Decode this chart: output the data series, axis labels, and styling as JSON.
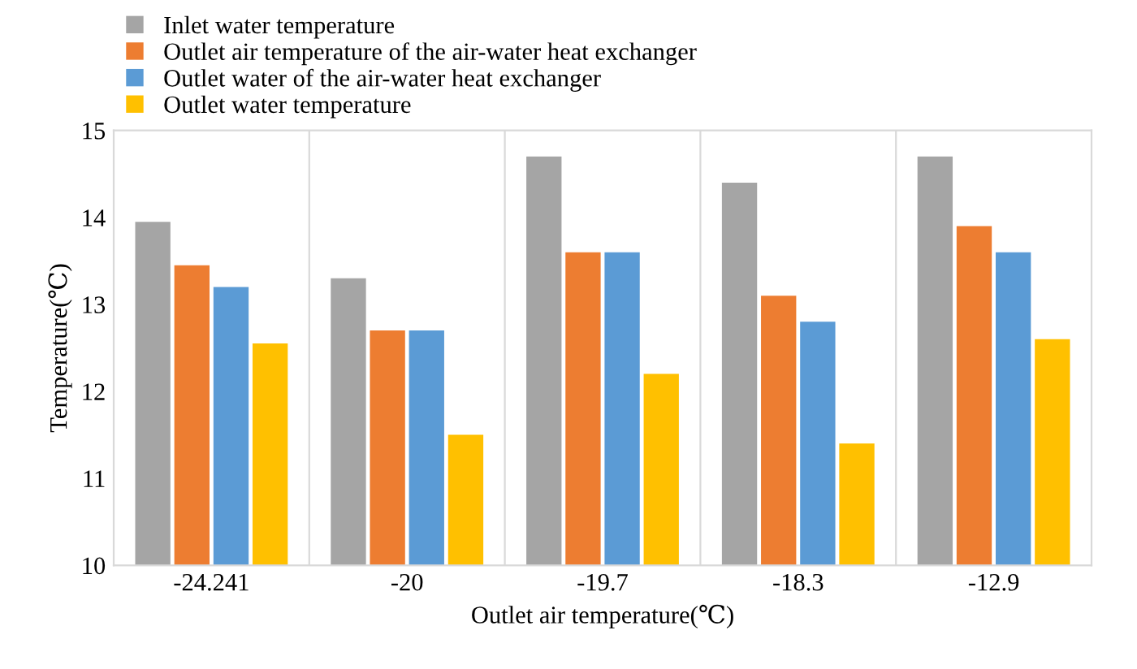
{
  "chart_data": {
    "type": "bar",
    "xlabel": "Outlet air temperature(℃)",
    "ylabel": "Temperature(℃)",
    "categories": [
      "-24.241",
      "-20",
      "-19.7",
      "-18.3",
      "-12.9"
    ],
    "series": [
      {
        "name": "Inlet water temperature",
        "color": "#a5a5a5",
        "values": [
          13.95,
          13.3,
          14.7,
          14.4,
          14.7
        ]
      },
      {
        "name": "Outlet air temperature of the air-water heat exchanger",
        "color": "#ed7d31",
        "values": [
          13.45,
          12.7,
          13.6,
          13.1,
          13.9
        ]
      },
      {
        "name": "Outlet water of the air-water heat exchanger",
        "color": "#5b9bd5",
        "values": [
          13.2,
          12.7,
          13.6,
          12.8,
          13.6
        ]
      },
      {
        "name": "Outlet water temperature",
        "color": "#ffc000",
        "values": [
          12.55,
          11.5,
          12.2,
          11.4,
          12.6
        ]
      }
    ],
    "ylim": [
      10,
      15
    ],
    "yticks": [
      10,
      11,
      12,
      13,
      14,
      15
    ],
    "grid": "x",
    "legend": "top left"
  }
}
